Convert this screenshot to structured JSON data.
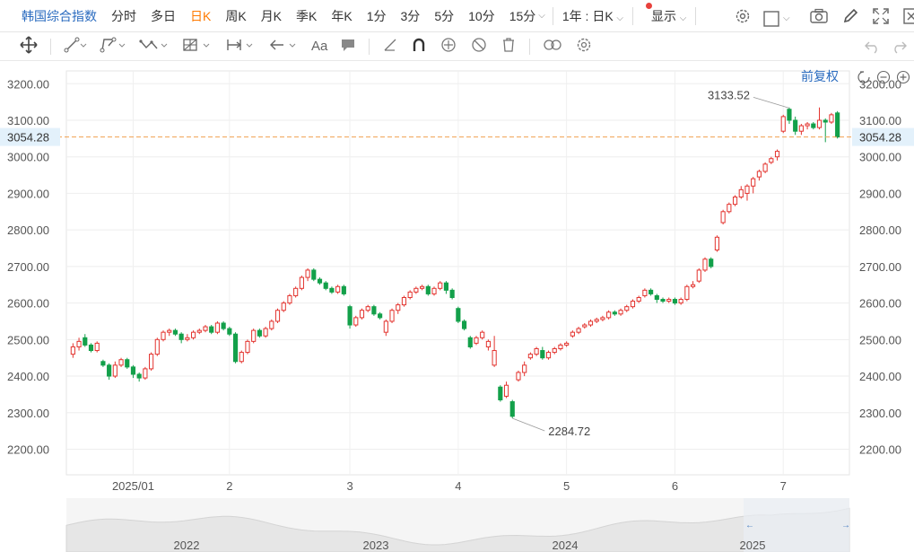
{
  "toolbar": {
    "title": "韩国综合指数",
    "periods": [
      "分时",
      "多日",
      "日K",
      "周K",
      "月K",
      "季K",
      "年K",
      "1分",
      "3分",
      "5分",
      "10分",
      "15分"
    ],
    "active_period": "日K",
    "range_label": "1年 : 日K",
    "display_label": "显示"
  },
  "adjust_label": "前复权",
  "colors": {
    "up": "#e3342f",
    "down": "#13a04a",
    "last_line": "#f0a050",
    "last_bg": "#e3f1fb",
    "title": "#2a6bbf",
    "active": "#ff7a00"
  },
  "icons": [
    "move-icon",
    "line-tool-icon",
    "path-tool-icon",
    "pattern-tool-icon",
    "grid-tool-icon",
    "measure-tool-icon",
    "arrow-tool-icon",
    "text-tool-icon",
    "comment-tool-icon",
    "ruler-icon",
    "magnet-icon",
    "lock-icon",
    "hide-icon",
    "delete-icon",
    "link-icon",
    "settings-icon",
    "undo-icon",
    "redo-icon",
    "camera-icon",
    "pencil-icon",
    "fullscreen-icon",
    "close-window-icon",
    "reset-zoom-icon",
    "zoom-out-icon",
    "zoom-in-icon",
    "gear-icon"
  ],
  "chart_data": {
    "type": "candlestick",
    "title": "韩国综合指数",
    "y_ticks": [
      "3200.00",
      "3100.00",
      "3000.00",
      "2900.00",
      "2800.00",
      "2700.00",
      "2600.00",
      "2500.00",
      "2400.00",
      "2300.00",
      "2200.00"
    ],
    "y_tick_values": [
      3200,
      3100,
      3000,
      2900,
      2800,
      2700,
      2600,
      2500,
      2400,
      2300,
      2200
    ],
    "ylim": [
      2130,
      3235
    ],
    "x_labels": [
      "2025/01",
      "2",
      "3",
      "4",
      "5",
      "6",
      "7"
    ],
    "last_price": "3054.28",
    "last_price_value": 3054.28,
    "max_label": "3133.52",
    "max_value": 3133.52,
    "min_label": "2284.72",
    "min_value": 2284.72,
    "navigator_labels": [
      "2022",
      "2023",
      "2024",
      "2025"
    ],
    "candles": [
      [
        2460,
        2480,
        2450,
        2490
      ],
      [
        2480,
        2495,
        2470,
        2505
      ],
      [
        2505,
        2485,
        2480,
        2515
      ],
      [
        2485,
        2470,
        2465,
        2490
      ],
      [
        2470,
        2490,
        2465,
        2495
      ],
      [
        2440,
        2430,
        2425,
        2445
      ],
      [
        2430,
        2400,
        2390,
        2435
      ],
      [
        2400,
        2430,
        2395,
        2440
      ],
      [
        2430,
        2445,
        2425,
        2450
      ],
      [
        2445,
        2425,
        2420,
        2450
      ],
      [
        2425,
        2405,
        2395,
        2430
      ],
      [
        2405,
        2395,
        2385,
        2410
      ],
      [
        2395,
        2420,
        2390,
        2425
      ],
      [
        2420,
        2460,
        2415,
        2465
      ],
      [
        2460,
        2500,
        2455,
        2505
      ],
      [
        2500,
        2520,
        2495,
        2525
      ],
      [
        2520,
        2525,
        2510,
        2530
      ],
      [
        2525,
        2515,
        2510,
        2530
      ],
      [
        2515,
        2500,
        2490,
        2520
      ],
      [
        2500,
        2505,
        2495,
        2515
      ],
      [
        2505,
        2520,
        2500,
        2525
      ],
      [
        2520,
        2525,
        2515,
        2530
      ],
      [
        2525,
        2535,
        2520,
        2540
      ],
      [
        2535,
        2520,
        2515,
        2540
      ],
      [
        2520,
        2545,
        2515,
        2550
      ],
      [
        2545,
        2530,
        2525,
        2550
      ],
      [
        2530,
        2515,
        2510,
        2535
      ],
      [
        2515,
        2440,
        2435,
        2520
      ],
      [
        2440,
        2465,
        2435,
        2470
      ],
      [
        2465,
        2495,
        2460,
        2500
      ],
      [
        2495,
        2525,
        2490,
        2530
      ],
      [
        2525,
        2510,
        2505,
        2530
      ],
      [
        2510,
        2530,
        2505,
        2535
      ],
      [
        2530,
        2550,
        2525,
        2555
      ],
      [
        2550,
        2580,
        2545,
        2585
      ],
      [
        2580,
        2600,
        2575,
        2605
      ],
      [
        2600,
        2620,
        2595,
        2625
      ],
      [
        2620,
        2640,
        2615,
        2645
      ],
      [
        2640,
        2670,
        2635,
        2675
      ],
      [
        2670,
        2690,
        2660,
        2695
      ],
      [
        2690,
        2665,
        2660,
        2695
      ],
      [
        2665,
        2655,
        2650,
        2670
      ],
      [
        2655,
        2640,
        2635,
        2660
      ],
      [
        2640,
        2630,
        2625,
        2645
      ],
      [
        2630,
        2645,
        2625,
        2650
      ],
      [
        2645,
        2625,
        2620,
        2650
      ],
      [
        2590,
        2540,
        2530,
        2595
      ],
      [
        2540,
        2560,
        2535,
        2565
      ],
      [
        2560,
        2580,
        2555,
        2585
      ],
      [
        2580,
        2590,
        2575,
        2595
      ],
      [
        2590,
        2570,
        2565,
        2595
      ],
      [
        2570,
        2560,
        2555,
        2575
      ],
      [
        2520,
        2550,
        2510,
        2555
      ],
      [
        2550,
        2580,
        2545,
        2585
      ],
      [
        2580,
        2595,
        2570,
        2600
      ],
      [
        2595,
        2615,
        2590,
        2620
      ],
      [
        2615,
        2630,
        2610,
        2635
      ],
      [
        2630,
        2640,
        2625,
        2645
      ],
      [
        2640,
        2645,
        2635,
        2650
      ],
      [
        2645,
        2625,
        2620,
        2650
      ],
      [
        2625,
        2640,
        2620,
        2645
      ],
      [
        2640,
        2655,
        2635,
        2660
      ],
      [
        2655,
        2635,
        2625,
        2660
      ],
      [
        2635,
        2615,
        2610,
        2640
      ],
      [
        2585,
        2550,
        2545,
        2590
      ],
      [
        2550,
        2530,
        2525,
        2555
      ],
      [
        2505,
        2480,
        2475,
        2510
      ],
      [
        2490,
        2505,
        2485,
        2510
      ],
      [
        2505,
        2520,
        2500,
        2525
      ],
      [
        2480,
        2495,
        2470,
        2500
      ],
      [
        2430,
        2470,
        2425,
        2510
      ],
      [
        2370,
        2335,
        2330,
        2375
      ],
      [
        2345,
        2375,
        2340,
        2385
      ],
      [
        2330,
        2290,
        2285,
        2335
      ],
      [
        2390,
        2410,
        2385,
        2415
      ],
      [
        2410,
        2430,
        2400,
        2440
      ],
      [
        2450,
        2460,
        2445,
        2465
      ],
      [
        2460,
        2475,
        2455,
        2480
      ],
      [
        2470,
        2450,
        2445,
        2480
      ],
      [
        2450,
        2465,
        2445,
        2470
      ],
      [
        2465,
        2475,
        2460,
        2480
      ],
      [
        2475,
        2485,
        2470,
        2490
      ],
      [
        2485,
        2490,
        2480,
        2495
      ],
      [
        2510,
        2520,
        2505,
        2525
      ],
      [
        2520,
        2530,
        2515,
        2535
      ],
      [
        2535,
        2540,
        2530,
        2545
      ],
      [
        2540,
        2550,
        2535,
        2555
      ],
      [
        2550,
        2555,
        2545,
        2560
      ],
      [
        2555,
        2560,
        2550,
        2565
      ],
      [
        2560,
        2575,
        2555,
        2580
      ],
      [
        2575,
        2570,
        2565,
        2580
      ],
      [
        2570,
        2580,
        2565,
        2585
      ],
      [
        2580,
        2590,
        2575,
        2595
      ],
      [
        2590,
        2605,
        2585,
        2610
      ],
      [
        2605,
        2615,
        2600,
        2620
      ],
      [
        2620,
        2635,
        2615,
        2640
      ],
      [
        2635,
        2625,
        2620,
        2640
      ],
      [
        2620,
        2610,
        2600,
        2625
      ],
      [
        2610,
        2605,
        2600,
        2615
      ],
      [
        2605,
        2610,
        2600,
        2615
      ],
      [
        2610,
        2600,
        2595,
        2615
      ],
      [
        2600,
        2610,
        2595,
        2615
      ],
      [
        2610,
        2645,
        2605,
        2650
      ],
      [
        2645,
        2650,
        2640,
        2660
      ],
      [
        2660,
        2690,
        2655,
        2695
      ],
      [
        2690,
        2720,
        2685,
        2725
      ],
      [
        2720,
        2700,
        2695,
        2725
      ],
      [
        2745,
        2780,
        2740,
        2785
      ],
      [
        2820,
        2850,
        2815,
        2855
      ],
      [
        2850,
        2870,
        2845,
        2875
      ],
      [
        2870,
        2890,
        2865,
        2895
      ],
      [
        2890,
        2910,
        2885,
        2920
      ],
      [
        2900,
        2920,
        2880,
        2925
      ],
      [
        2920,
        2940,
        2900,
        2945
      ],
      [
        2945,
        2960,
        2935,
        2965
      ],
      [
        2960,
        2980,
        2955,
        2985
      ],
      [
        2985,
        2995,
        2980,
        3000
      ],
      [
        3000,
        3015,
        2990,
        3020
      ],
      [
        3070,
        3110,
        3065,
        3115
      ],
      [
        3130,
        3100,
        3090,
        3135
      ],
      [
        3100,
        3070,
        3060,
        3110
      ],
      [
        3070,
        3085,
        3060,
        3090
      ],
      [
        3085,
        3090,
        3075,
        3095
      ],
      [
        3090,
        3080,
        3075,
        3095
      ],
      [
        3080,
        3100,
        3075,
        3135
      ],
      [
        3100,
        3095,
        3040,
        3105
      ],
      [
        3095,
        3115,
        3090,
        3120
      ],
      [
        3120,
        3054.28,
        3050,
        3125
      ]
    ]
  }
}
